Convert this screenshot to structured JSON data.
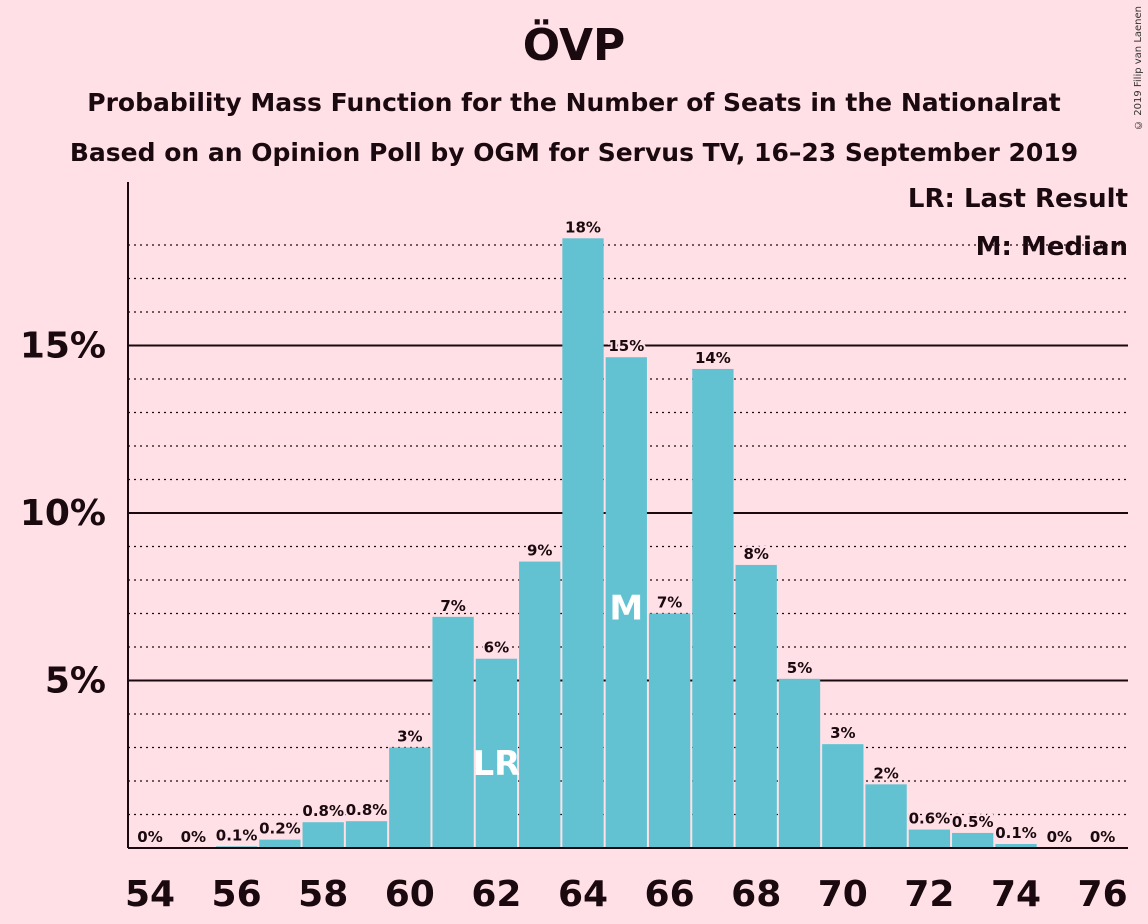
{
  "header": {
    "title": "ÖVP",
    "subtitle1": "Probability Mass Function for the Number of Seats in the Nationalrat",
    "subtitle2": "Based on an Opinion Poll by OGM for Servus TV, 16–23 September 2019",
    "copyright": "© 2019 Filip van Laenen"
  },
  "legend": {
    "last_result": "LR: Last Result",
    "median": "M: Median"
  },
  "colors": {
    "background": "#ffe0e6",
    "bar": "#62c2d2",
    "bar_label_on_bar": "#ffffff"
  },
  "chart_data": {
    "type": "bar",
    "title": "ÖVP",
    "xlabel": "",
    "ylabel": "",
    "categories": [
      54,
      55,
      56,
      57,
      58,
      59,
      60,
      61,
      62,
      63,
      64,
      65,
      66,
      67,
      68,
      69,
      70,
      71,
      72,
      73,
      74,
      75,
      76
    ],
    "values": [
      0,
      0,
      0.1,
      0.2,
      0.8,
      0.8,
      3,
      7,
      6,
      9,
      18,
      15,
      7,
      14,
      8,
      5,
      3,
      2,
      0.6,
      0.5,
      0.1,
      0,
      0
    ],
    "bar_heights_percent": [
      0,
      0,
      0.05,
      0.25,
      0.77,
      0.8,
      3.0,
      6.9,
      5.65,
      8.55,
      18.2,
      14.65,
      7.0,
      14.3,
      8.45,
      5.05,
      3.1,
      1.9,
      0.55,
      0.45,
      0.12,
      0,
      0
    ],
    "labels": [
      "0%",
      "0%",
      "0.1%",
      "0.2%",
      "0.8%",
      "0.8%",
      "3%",
      "7%",
      "6%",
      "9%",
      "18%",
      "15%",
      "7%",
      "14%",
      "8%",
      "5%",
      "3%",
      "2%",
      "0.6%",
      "0.5%",
      "0.1%",
      "0%",
      "0%"
    ],
    "x_tick_labels": [
      "54",
      "56",
      "58",
      "60",
      "62",
      "64",
      "66",
      "68",
      "70",
      "72",
      "74",
      "76"
    ],
    "y_tick_labels": [
      "5%",
      "10%",
      "15%"
    ],
    "y_ticks": [
      5,
      10,
      15
    ],
    "ylim": [
      0,
      20
    ],
    "last_result_seat": 62,
    "last_result_marker": "LR",
    "median_seat": 65,
    "median_marker": "M",
    "grid": "dotted every 1%, solid every 5%",
    "legend_position": "top-right"
  }
}
